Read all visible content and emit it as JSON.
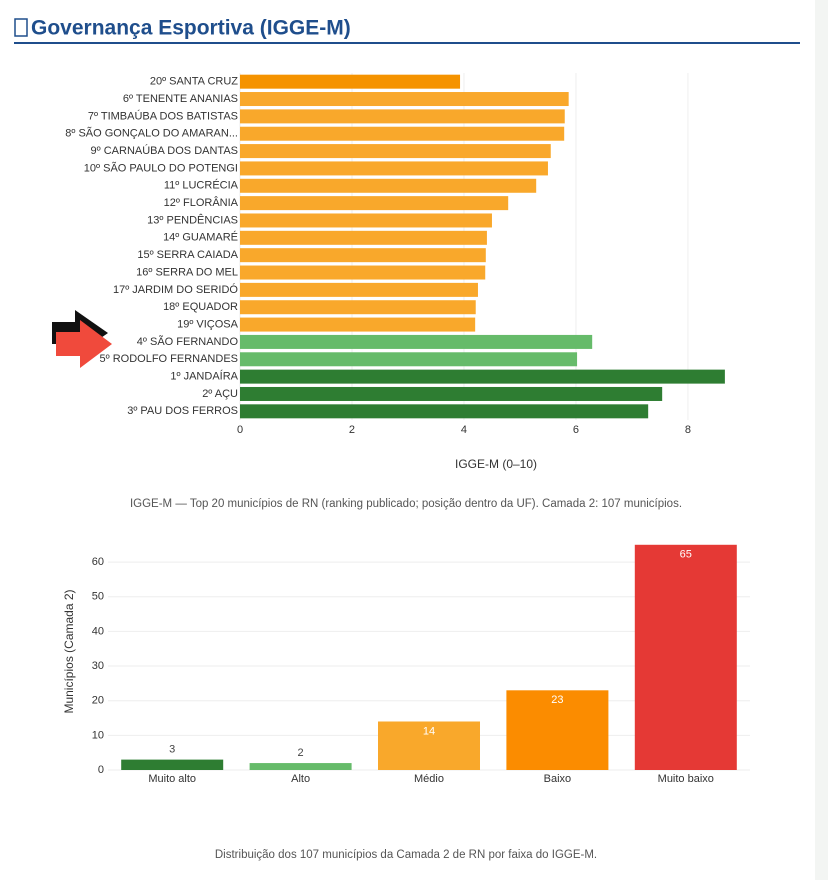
{
  "header": {
    "title": "Governança Esportiva (IGGE-M)"
  },
  "chart_data": [
    {
      "type": "bar",
      "orientation": "horizontal",
      "categories": [
        "20º SANTA CRUZ",
        "6º TENENTE ANANIAS",
        "7º TIMBAÚBA DOS BATISTAS",
        "8º SÃO GONÇALO DO AMARAN...",
        "9º CARNAÚBA DOS DANTAS",
        "10º SÃO PAULO DO POTENGI",
        "11º LUCRÉCIA",
        "12º FLORÂNIA",
        "13º PENDÊNCIAS",
        "14º GUAMARÉ",
        "15º SERRA CAIADA",
        "16º SERRA DO MEL",
        "17º JARDIM DO SERIDÓ",
        "18º EQUADOR",
        "19º VIÇOSA",
        "4º SÃO FERNANDO",
        "5º RODOLFO FERNANDES",
        "1º JANDAÍRA",
        "2º AÇU",
        "3º PAU DOS FERROS"
      ],
      "values": [
        3.93,
        5.87,
        5.8,
        5.79,
        5.55,
        5.5,
        5.29,
        4.79,
        4.5,
        4.41,
        4.39,
        4.38,
        4.25,
        4.21,
        4.2,
        6.29,
        6.02,
        8.66,
        7.54,
        7.29
      ],
      "colors": [
        "#f59300",
        "#f9a82b",
        "#f9a82b",
        "#f9a82b",
        "#f9a82b",
        "#f9a82b",
        "#f9a82b",
        "#f9a82b",
        "#f9a82b",
        "#f9a82b",
        "#f9a82b",
        "#f9a82b",
        "#f9a82b",
        "#f9a82b",
        "#f9a82b",
        "#66bb6a",
        "#66bb6a",
        "#2e7d32",
        "#2e7d32",
        "#2e7d32"
      ],
      "xlim": [
        0,
        8.93
      ],
      "xticks": [
        0,
        2,
        4,
        6,
        8
      ],
      "grid": true,
      "x_label": "IGGE-M (0–10)",
      "caption": "IGGE-M — Top 20 municípios de RN (ranking publicado; posição dentro da UF). Camada 2: 107 municípios."
    },
    {
      "type": "bar",
      "orientation": "vertical",
      "categories": [
        "Muito alto",
        "Alto",
        "Médio",
        "Baixo",
        "Muito baixo"
      ],
      "values": [
        3,
        2,
        14,
        23,
        65
      ],
      "colors": [
        "#2e7d32",
        "#66bb6a",
        "#f9a82b",
        "#fb8c00",
        "#e53935"
      ],
      "ylim": [
        0,
        68.4
      ],
      "yticks": [
        0,
        10,
        20,
        30,
        40,
        50,
        60
      ],
      "grid": true,
      "y_label": "Municípios (Camada 2)",
      "caption": "Distribuição dos 107 municípios da Camada 2 de RN por faixa do IGGE-M."
    }
  ]
}
